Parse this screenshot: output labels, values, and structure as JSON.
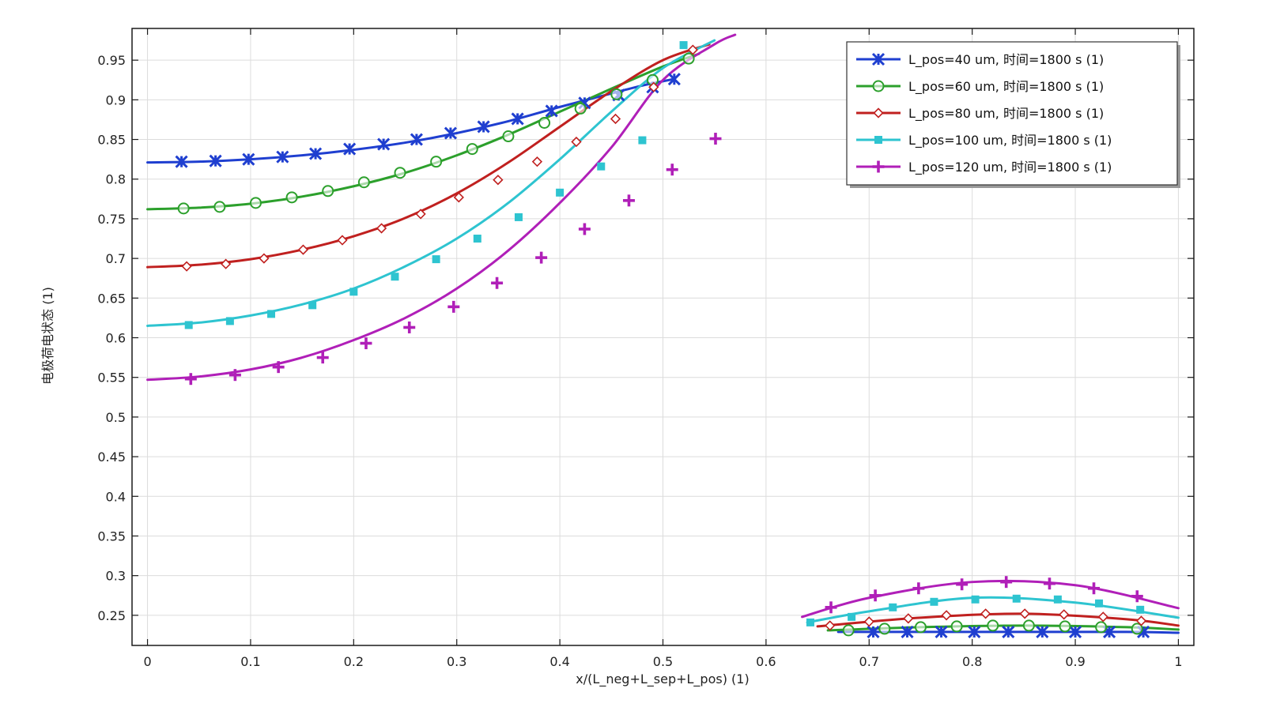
{
  "chart_data": {
    "type": "line",
    "xlabel": "x/(L_neg+L_sep+L_pos) (1)",
    "ylabel": "电极荷电状态 (1)",
    "xlim": [
      -0.015,
      1.015
    ],
    "ylim": [
      0.212,
      0.99
    ],
    "xticks": [
      0,
      0.1,
      0.2,
      0.3,
      0.4,
      0.5,
      0.6,
      0.7,
      0.8,
      0.9,
      1
    ],
    "xtick_labels": [
      "0",
      "0.1",
      "0.2",
      "0.3",
      "0.4",
      "0.5",
      "0.6",
      "0.7",
      "0.8",
      "0.9",
      "1"
    ],
    "yticks": [
      0.25,
      0.3,
      0.35,
      0.4,
      0.45,
      0.5,
      0.55,
      0.6,
      0.65,
      0.7,
      0.75,
      0.8,
      0.85,
      0.9,
      0.95
    ],
    "ytick_labels": [
      "0.25",
      "0.3",
      "0.35",
      "0.4",
      "0.45",
      "0.5",
      "0.55",
      "0.6",
      "0.65",
      "0.7",
      "0.75",
      "0.8",
      "0.85",
      "0.9",
      "0.95"
    ],
    "grid": true,
    "legend_position": "top-right",
    "series": [
      {
        "name": "L_pos=40 um, 时间=1800 s (1)",
        "color": "#1f3fd0",
        "marker": "asterisk",
        "segments": [
          {
            "x": [
              0,
              0.05,
              0.1,
              0.15,
              0.2,
              0.25,
              0.3,
              0.35,
              0.4,
              0.45,
              0.48,
              0.51
            ],
            "y": [
              0.821,
              0.822,
              0.825,
              0.83,
              0.837,
              0.846,
              0.858,
              0.873,
              0.891,
              0.908,
              0.918,
              0.926
            ]
          },
          {
            "x": [
              0.67,
              0.75,
              0.85,
              0.95,
              1.0
            ],
            "y": [
              0.229,
              0.229,
              0.229,
              0.229,
              0.228
            ]
          }
        ],
        "markers": [
          {
            "x": [
              0.033,
              0.066,
              0.098,
              0.131,
              0.163,
              0.196,
              0.229,
              0.261,
              0.294,
              0.326,
              0.359,
              0.392,
              0.424,
              0.457,
              0.49,
              0.511
            ],
            "y": [
              0.822,
              0.823,
              0.825,
              0.828,
              0.832,
              0.838,
              0.844,
              0.85,
              0.858,
              0.866,
              0.876,
              0.886,
              0.896,
              0.906,
              0.916,
              0.926
            ]
          },
          {
            "x": [
              0.704,
              0.737,
              0.77,
              0.802,
              0.835,
              0.868,
              0.9,
              0.933,
              0.966
            ],
            "y": [
              0.229,
              0.229,
              0.229,
              0.229,
              0.229,
              0.229,
              0.229,
              0.229,
              0.229
            ]
          }
        ]
      },
      {
        "name": "L_pos=60 um, 时间=1800 s (1)",
        "color": "#2ca02c",
        "marker": "circle",
        "segments": [
          {
            "x": [
              0,
              0.05,
              0.1,
              0.15,
              0.2,
              0.25,
              0.3,
              0.35,
              0.4,
              0.45,
              0.5,
              0.535
            ],
            "y": [
              0.762,
              0.764,
              0.769,
              0.778,
              0.791,
              0.808,
              0.83,
              0.856,
              0.885,
              0.914,
              0.942,
              0.958
            ]
          },
          {
            "x": [
              0.66,
              0.75,
              0.85,
              0.95,
              1.0
            ],
            "y": [
              0.231,
              0.235,
              0.237,
              0.235,
              0.232
            ]
          }
        ],
        "markers": [
          {
            "x": [
              0.035,
              0.07,
              0.105,
              0.14,
              0.175,
              0.21,
              0.245,
              0.28,
              0.315,
              0.35,
              0.385,
              0.42,
              0.455,
              0.49,
              0.525
            ],
            "y": [
              0.763,
              0.765,
              0.77,
              0.777,
              0.785,
              0.796,
              0.808,
              0.822,
              0.838,
              0.854,
              0.871,
              0.889,
              0.907,
              0.925,
              0.952
            ]
          },
          {
            "x": [
              0.68,
              0.715,
              0.75,
              0.785,
              0.82,
              0.855,
              0.89,
              0.925,
              0.96
            ],
            "y": [
              0.231,
              0.233,
              0.235,
              0.236,
              0.237,
              0.237,
              0.236,
              0.235,
              0.233
            ]
          }
        ]
      },
      {
        "name": "L_pos=80 um, 时间=1800 s (1)",
        "color": "#c0201f",
        "marker": "diamond",
        "segments": [
          {
            "x": [
              0,
              0.05,
              0.1,
              0.15,
              0.2,
              0.25,
              0.3,
              0.35,
              0.4,
              0.45,
              0.5,
              0.545
            ],
            "y": [
              0.689,
              0.692,
              0.699,
              0.711,
              0.728,
              0.751,
              0.782,
              0.821,
              0.866,
              0.911,
              0.95,
              0.97
            ]
          },
          {
            "x": [
              0.65,
              0.75,
              0.85,
              0.95,
              1.0
            ],
            "y": [
              0.236,
              0.247,
              0.252,
              0.245,
              0.237
            ]
          }
        ],
        "markers": [
          {
            "x": [
              0.038,
              0.076,
              0.113,
              0.151,
              0.189,
              0.227,
              0.265,
              0.302,
              0.34,
              0.378,
              0.416,
              0.454,
              0.491,
              0.529
            ],
            "y": [
              0.69,
              0.693,
              0.7,
              0.711,
              0.723,
              0.738,
              0.756,
              0.777,
              0.799,
              0.822,
              0.847,
              0.876,
              0.916,
              0.963
            ]
          },
          {
            "x": [
              0.662,
              0.7,
              0.738,
              0.775,
              0.813,
              0.851,
              0.889,
              0.927,
              0.964
            ],
            "y": [
              0.237,
              0.242,
              0.246,
              0.25,
              0.252,
              0.252,
              0.251,
              0.248,
              0.243
            ]
          }
        ]
      },
      {
        "name": "L_pos=100 um, 时间=1800 s (1)",
        "color": "#2ec4d0",
        "marker": "square",
        "segments": [
          {
            "x": [
              0,
              0.05,
              0.1,
              0.15,
              0.2,
              0.25,
              0.3,
              0.35,
              0.4,
              0.45,
              0.5,
              0.55
            ],
            "y": [
              0.615,
              0.619,
              0.628,
              0.642,
              0.662,
              0.69,
              0.725,
              0.77,
              0.825,
              0.885,
              0.94,
              0.975
            ]
          },
          {
            "x": [
              0.64,
              0.7,
              0.8,
              0.9,
              1.0
            ],
            "y": [
              0.241,
              0.255,
              0.272,
              0.266,
              0.247
            ]
          }
        ],
        "markers": [
          {
            "x": [
              0.04,
              0.08,
              0.12,
              0.16,
              0.2,
              0.24,
              0.28,
              0.32,
              0.36,
              0.4,
              0.44,
              0.48,
              0.52
            ],
            "y": [
              0.616,
              0.621,
              0.63,
              0.641,
              0.658,
              0.677,
              0.699,
              0.725,
              0.752,
              0.783,
              0.816,
              0.849,
              0.969
            ]
          },
          {
            "x": [
              0.643,
              0.683,
              0.723,
              0.763,
              0.803,
              0.843,
              0.883,
              0.923,
              0.963
            ],
            "y": [
              0.241,
              0.248,
              0.26,
              0.267,
              0.27,
              0.271,
              0.27,
              0.265,
              0.257
            ]
          }
        ]
      },
      {
        "name": "L_pos=120 um, 时间=1800 s (1)",
        "color": "#b01fb8",
        "marker": "plus",
        "segments": [
          {
            "x": [
              0,
              0.05,
              0.1,
              0.15,
              0.2,
              0.25,
              0.3,
              0.35,
              0.4,
              0.45,
              0.5,
              0.55,
              0.57
            ],
            "y": [
              0.547,
              0.551,
              0.56,
              0.575,
              0.597,
              0.625,
              0.662,
              0.71,
              0.77,
              0.84,
              0.925,
              0.97,
              0.982
            ]
          },
          {
            "x": [
              0.635,
              0.7,
              0.8,
              0.9,
              1.0
            ],
            "y": [
              0.248,
              0.272,
              0.292,
              0.288,
              0.259
            ]
          }
        ],
        "markers": [
          {
            "x": [
              0.042,
              0.085,
              0.127,
              0.17,
              0.212,
              0.254,
              0.297,
              0.339,
              0.382,
              0.424,
              0.467,
              0.509,
              0.551
            ],
            "y": [
              0.548,
              0.553,
              0.563,
              0.575,
              0.593,
              0.613,
              0.639,
              0.669,
              0.701,
              0.737,
              0.773,
              0.812,
              0.851
            ]
          },
          {
            "x": [
              0.663,
              0.706,
              0.748,
              0.79,
              0.833,
              0.875,
              0.918,
              0.96
            ],
            "y": [
              0.26,
              0.275,
              0.284,
              0.289,
              0.292,
              0.29,
              0.284,
              0.274
            ]
          }
        ]
      }
    ]
  }
}
